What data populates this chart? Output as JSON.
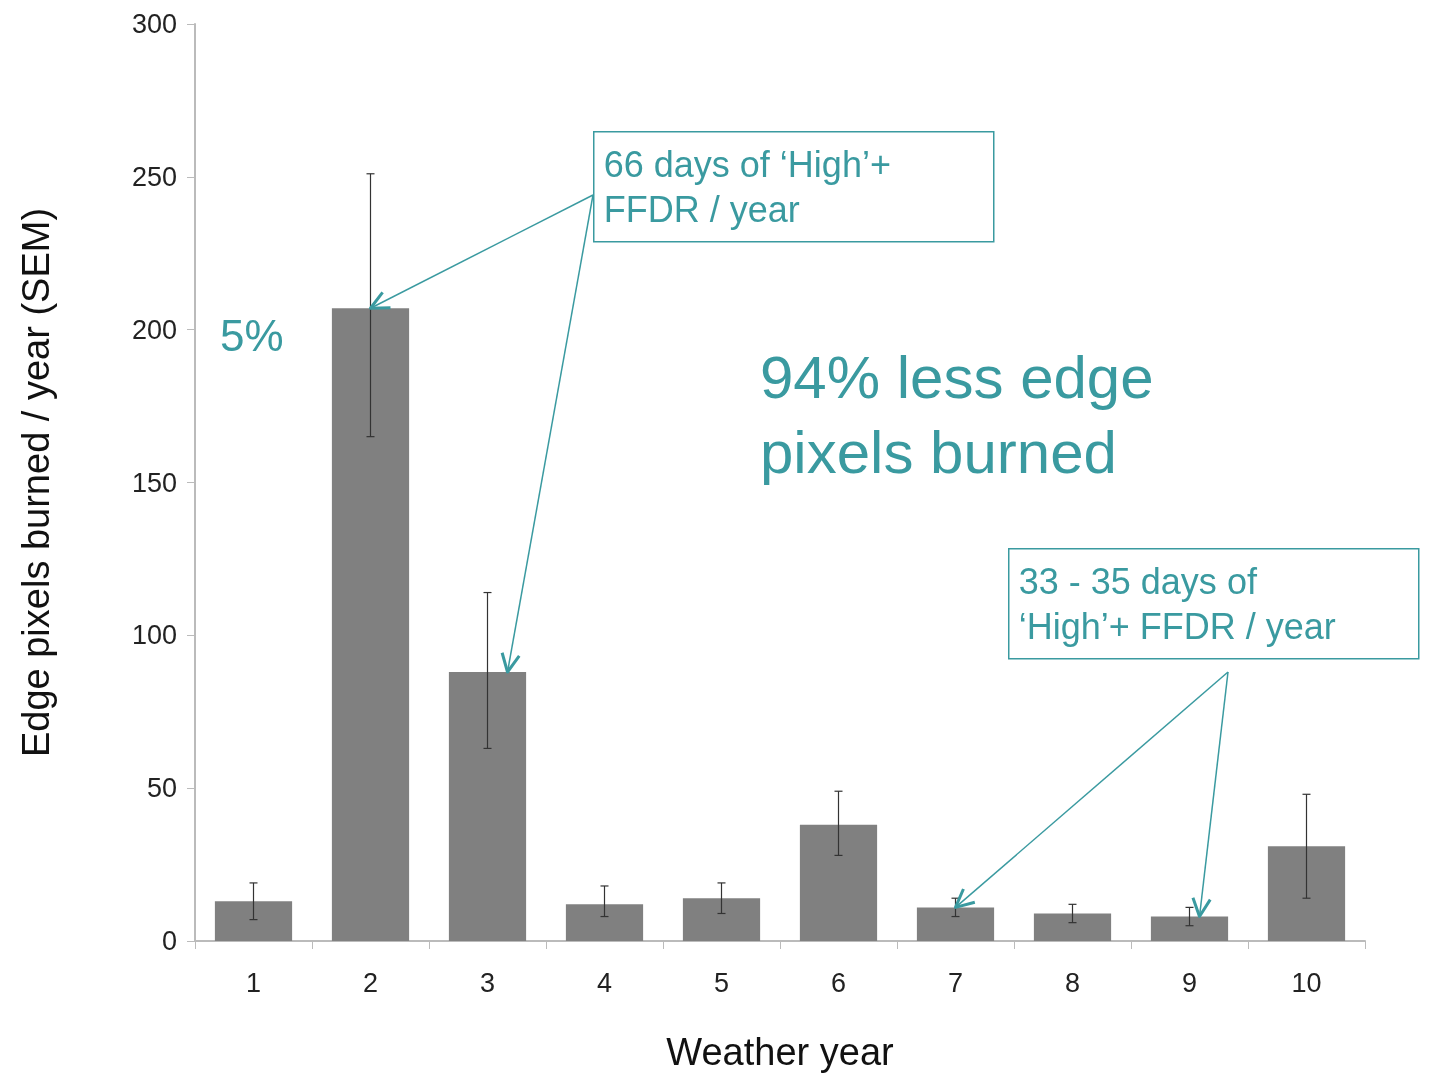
{
  "chart_data": {
    "type": "bar",
    "xlabel": "Weather year",
    "ylabel": "Edge pixels burned / year (SEM)",
    "categories": [
      "1",
      "2",
      "3",
      "4",
      "5",
      "6",
      "7",
      "8",
      "9",
      "10"
    ],
    "values": [
      13,
      207,
      88,
      12,
      14,
      38,
      11,
      9,
      8,
      31
    ],
    "errors": [
      [
        7,
        19
      ],
      [
        165,
        251
      ],
      [
        63,
        114
      ],
      [
        8,
        18
      ],
      [
        9,
        19
      ],
      [
        28,
        49
      ],
      [
        8,
        14
      ],
      [
        6,
        12
      ],
      [
        5,
        11
      ],
      [
        14,
        48
      ]
    ],
    "color": "#808080",
    "ylim": [
      0,
      300
    ],
    "yticks": [
      0,
      50,
      100,
      150,
      200,
      250,
      300
    ],
    "grid": false,
    "annotations": [
      "5%",
      "94% less edge pixels burned",
      {
        "text": "66 days of ‘High’+ FFDR / year",
        "x": "2",
        "y": 207
      },
      {
        "text": "33 - 35 days of ‘High’+ FFDR / year",
        "x": "7",
        "y": 11
      }
    ]
  }
}
